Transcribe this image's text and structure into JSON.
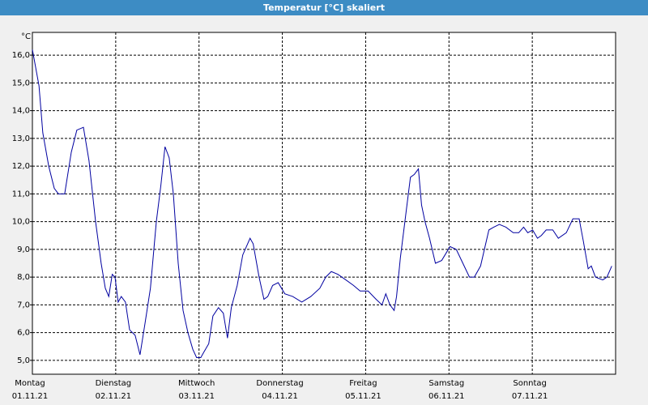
{
  "chart_data": {
    "type": "line",
    "title": "Temperatur [°C] skaliert",
    "y_unit": "°C",
    "x": [
      0,
      1.9,
      3,
      4.7,
      6.3,
      7.5,
      9.3,
      11.2,
      12.8,
      14.7,
      16.3,
      18.2,
      19.8,
      21,
      22,
      23,
      23.8,
      24.7,
      25.6,
      26.8,
      28,
      29.6,
      31,
      32.4,
      34,
      35.7,
      37,
      38.2,
      39.4,
      40.6,
      42,
      43.4,
      44.8,
      46.2,
      47.3,
      48.5,
      49.4,
      50.8,
      52,
      53.6,
      55,
      56.2,
      57.3,
      59,
      60.6,
      62.7,
      63.6,
      65.3,
      66.7,
      67.8,
      69.2,
      70.8,
      72.7,
      75,
      77.6,
      80.2,
      82.8,
      84.5,
      86.1,
      88,
      90.3,
      92.5,
      94.4,
      96.7,
      99,
      100.7,
      101.8,
      103,
      104.2,
      104.9,
      106,
      107.5,
      108.9,
      110,
      111.2,
      112.1,
      113.1,
      114.4,
      116.1,
      117.9,
      120.3,
      122.1,
      124,
      125.9,
      127.3,
      129.1,
      131.5,
      132.9,
      134.5,
      136.4,
      138.5,
      140.1,
      141.5,
      142.7,
      144.1,
      145.5,
      146.6,
      148,
      149.9,
      151.5,
      153.8,
      155.7,
      157.5,
      158.7,
      160.1,
      161,
      162.2,
      164.3,
      165.5,
      166.9
    ],
    "values": [
      16.2,
      14.9,
      13.2,
      12.0,
      11.2,
      11.0,
      11.0,
      12.5,
      13.3,
      13.4,
      12.2,
      10.0,
      8.5,
      7.6,
      7.3,
      8.1,
      8.0,
      7.1,
      7.3,
      7.1,
      6.1,
      5.9,
      5.2,
      6.3,
      7.6,
      10.0,
      11.3,
      12.7,
      12.3,
      11.0,
      8.5,
      6.8,
      6.0,
      5.4,
      5.1,
      5.1,
      5.3,
      5.6,
      6.6,
      6.9,
      6.7,
      5.8,
      6.9,
      7.7,
      8.8,
      9.4,
      9.2,
      8.0,
      7.2,
      7.3,
      7.7,
      7.8,
      7.4,
      7.3,
      7.1,
      7.3,
      7.6,
      8.0,
      8.2,
      8.1,
      7.9,
      7.7,
      7.5,
      7.5,
      7.2,
      7.0,
      7.4,
      7.0,
      6.8,
      7.3,
      8.7,
      10.2,
      11.6,
      11.7,
      11.9,
      10.6,
      10.0,
      9.4,
      8.5,
      8.6,
      9.1,
      9.0,
      8.5,
      8.0,
      8.0,
      8.4,
      9.7,
      9.8,
      9.9,
      9.8,
      9.6,
      9.6,
      9.8,
      9.6,
      9.7,
      9.4,
      9.5,
      9.7,
      9.7,
      9.4,
      9.6,
      10.1,
      10.1,
      9.3,
      8.3,
      8.4,
      8.0,
      7.9,
      8.0,
      8.4
    ],
    "color": "#0000a0",
    "xlim": [
      0,
      168
    ],
    "xticks": [
      {
        "value": 0,
        "label": "Montag",
        "date": "01.11.21"
      },
      {
        "value": 24,
        "label": "Dienstag",
        "date": "02.11.21"
      },
      {
        "value": 48,
        "label": "Mittwoch",
        "date": "03.11.21"
      },
      {
        "value": 72,
        "label": "Donnerstag",
        "date": "04.11.21"
      },
      {
        "value": 96,
        "label": "Freitag",
        "date": "05.11.21"
      },
      {
        "value": 120,
        "label": "Samstag",
        "date": "06.11.21"
      },
      {
        "value": 144,
        "label": "Sonntag",
        "date": "07.11.21"
      }
    ],
    "ylim": [
      4.5,
      16.82
    ],
    "yticks": [
      {
        "value": 5,
        "label": "5,0"
      },
      {
        "value": 6,
        "label": "6,0"
      },
      {
        "value": 7,
        "label": "7,0"
      },
      {
        "value": 8,
        "label": "8,0"
      },
      {
        "value": 9,
        "label": "9,0"
      },
      {
        "value": 10,
        "label": "10,0"
      },
      {
        "value": 11,
        "label": "11,0"
      },
      {
        "value": 12,
        "label": "12,0"
      },
      {
        "value": 13,
        "label": "13,0"
      },
      {
        "value": 14,
        "label": "14,0"
      },
      {
        "value": 15,
        "label": "15,0"
      },
      {
        "value": 16,
        "label": "16,0"
      }
    ],
    "grid": true
  }
}
